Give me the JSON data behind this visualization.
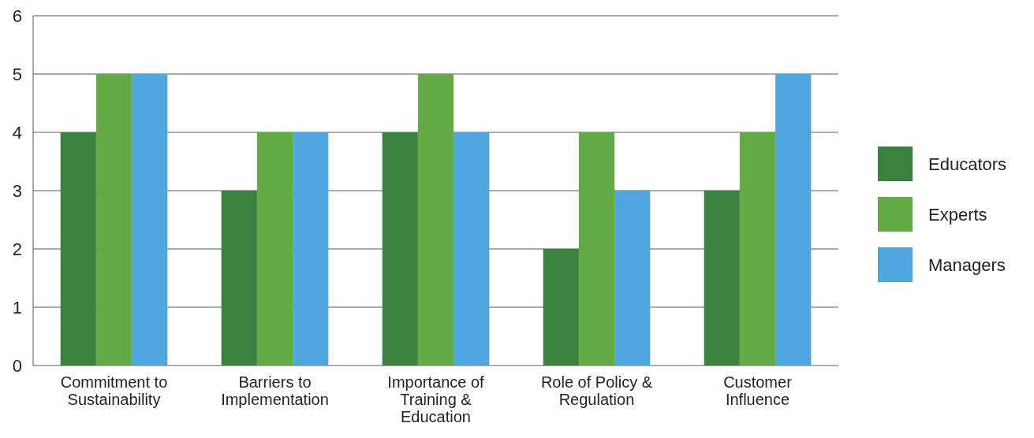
{
  "chart_data": {
    "type": "bar",
    "categories": [
      "Commitment to Sustainability",
      "Barriers to Implementation",
      "Importance of Training & Education",
      "Role of Policy & Regulation",
      "Customer Influence"
    ],
    "series": [
      {
        "name": "Educators",
        "color": "#3b8241",
        "values": [
          4,
          3,
          4,
          2,
          3
        ]
      },
      {
        "name": "Experts",
        "color": "#63a945",
        "values": [
          5,
          4,
          5,
          4,
          4
        ]
      },
      {
        "name": "Managers",
        "color": "#4fa7dd",
        "values": [
          5,
          4,
          4,
          3,
          5
        ]
      }
    ],
    "ylim": [
      0,
      6
    ],
    "yticks": [
      0,
      1,
      2,
      3,
      4,
      5,
      6
    ],
    "grid": "y",
    "legend": "right"
  }
}
